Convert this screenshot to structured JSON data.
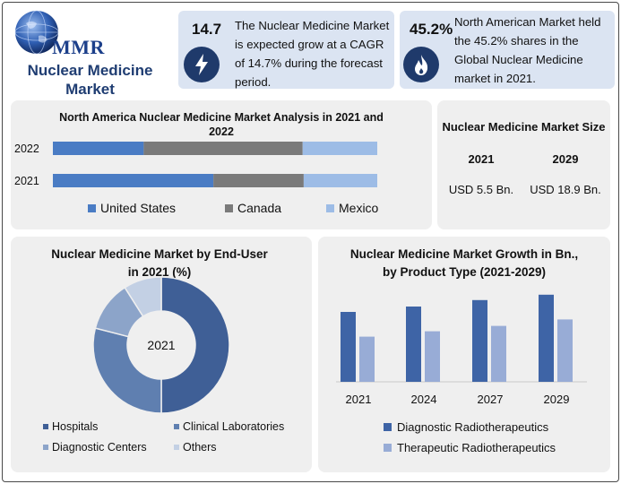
{
  "logo": {
    "mark": "MMR",
    "title_line1": "Nuclear Medicine",
    "title_line2": "Market"
  },
  "stat_cagr": {
    "value": "14.7",
    "icon": "lightning-icon",
    "text": "The Nuclear Medicine Market is expected grow at a CAGR of 14.7% during the forecast period."
  },
  "stat_share": {
    "value": "45.2%",
    "icon": "flame-icon",
    "text": "North American Market held the 45.2% shares in the Global Nuclear Medicine market in 2021."
  },
  "market_size": {
    "title": "Nuclear Medicine Market Size",
    "col1": {
      "year": "2021",
      "value": "USD 5.5 Bn."
    },
    "col2": {
      "year": "2029",
      "value": "USD 18.9 Bn."
    }
  },
  "colors": {
    "us": "#4a7cc4",
    "canada": "#7a7a7a",
    "mexico": "#9dbce6",
    "donut_navy": "#3f5f96",
    "donut_mid": "#5f7fb0",
    "donut_light": "#8ca4c9",
    "donut_pale": "#c3d0e4",
    "diagnostic": "#3e64a6",
    "therapeutic": "#98acd6"
  },
  "chart_data": [
    {
      "type": "bar",
      "orientation": "horizontal-stacked",
      "title": "North America Nuclear Medicine Market Analysis in 2021 and 2022",
      "categories": [
        "2022",
        "2021"
      ],
      "series": [
        {
          "name": "United States",
          "values": [
            28,
            48
          ]
        },
        {
          "name": "Canada",
          "values": [
            49,
            27
          ]
        },
        {
          "name": "Mexico",
          "values": [
            23,
            22
          ]
        }
      ],
      "legend": "bottom"
    },
    {
      "type": "pie",
      "variant": "donut",
      "title": "Nuclear Medicine Market by End-User in 2021 (%)",
      "center_label": "2021",
      "labels": [
        "Hospitals",
        "Clinical Laboratories",
        "Diagnostic Centers",
        "Others"
      ],
      "values": [
        50,
        29,
        12,
        9
      ],
      "legend": "bottom"
    },
    {
      "type": "bar",
      "title": "Nuclear Medicine Market Growth in Bn., by Product Type (2021-2029)",
      "categories": [
        "2021",
        "2024",
        "2027",
        "2029"
      ],
      "series": [
        {
          "name": "Diagnostic Radiotherapeutics",
          "values": [
            6.5,
            7.0,
            7.6,
            8.1
          ]
        },
        {
          "name": "Therapeutic Radiotherapeutics",
          "values": [
            4.2,
            4.7,
            5.2,
            5.8
          ]
        }
      ],
      "legend": "bottom"
    }
  ]
}
